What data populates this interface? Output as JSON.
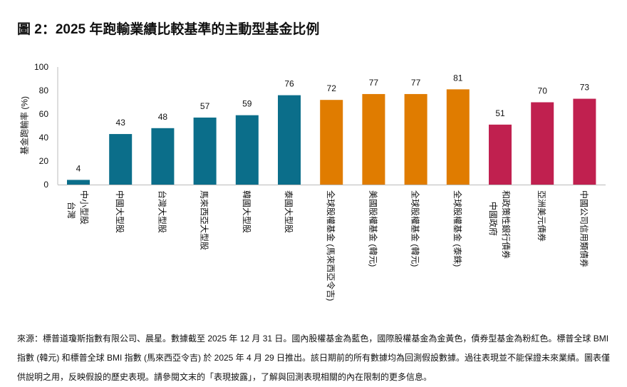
{
  "title": "圖 2：2025 年跑輸業績比較基準的主動型基金比例",
  "chart_data": {
    "type": "bar",
    "title": "圖 2：2025 年跑輸業績比較基準的主動型基金比例",
    "ylabel": "基金跑輸率 (%)",
    "xlabel": "",
    "ylim": [
      0,
      100
    ],
    "yticks": [
      0,
      20,
      40,
      60,
      80,
      100
    ],
    "grid": false,
    "categories": [
      [
        "台灣",
        "中小型股"
      ],
      [
        "中國大型股"
      ],
      [
        "台灣大型股"
      ],
      [
        "馬來西亞大型股"
      ],
      [
        "韓國大型股"
      ],
      [
        "泰國大型股"
      ],
      [
        "全球股權基金 (馬來西亞令吉)"
      ],
      [
        "美國股權基金 (韓元)"
      ],
      [
        "全球股權基金 (韓元)"
      ],
      [
        "全球股權基金 (泰銖)"
      ],
      [
        "中國政府",
        "和政策性銀行債券"
      ],
      [
        "亞洲美元債券"
      ],
      [
        "中國公司信用類債券"
      ]
    ],
    "values": [
      4,
      43,
      48,
      57,
      59,
      76,
      72,
      77,
      77,
      81,
      51,
      70,
      73
    ],
    "groups": [
      "domestic",
      "domestic",
      "domestic",
      "domestic",
      "domestic",
      "domestic",
      "international",
      "international",
      "international",
      "international",
      "bond",
      "bond",
      "bond"
    ],
    "colors": {
      "domestic": "#0b6e8a",
      "international": "#e07c00",
      "bond": "#c0204f"
    }
  },
  "footnote": "來源：標普道瓊斯指數有限公司、晨星。數據截至 2025 年 12 月 31 日。國內股權基金為藍色，國際股權基金為金黃色，債券型基金為粉紅色。標普全球 BMI 指數 (韓元) 和標普全球 BMI 指數 (馬來西亞令吉) 於 2025 年 4 月 29 日推出。該日期前的所有數據均為回測假設數據。過往表現並不能保證未來業績。圖表僅供說明之用，反映假設的歷史表現。請參閱文末的「表現披露」，了解與回測表現相關的內在限制的更多信息。"
}
